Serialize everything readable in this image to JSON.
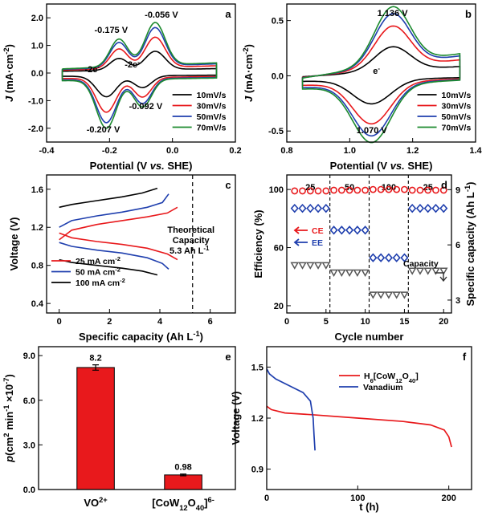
{
  "chart_data": [
    {
      "panel": "a",
      "type": "line",
      "xlabel": "Potential (V vs. SHE)",
      "ylabel": "J (mA·cm-2)",
      "xlim": [
        -0.4,
        0.2
      ],
      "ylim": [
        -2.5,
        2.5
      ],
      "xticks": [
        "-0.4",
        "-0.2",
        "0.0",
        "0.2"
      ],
      "yticks": [
        "-2.0",
        "-1.0",
        "0.0",
        "1.0",
        "2.0"
      ],
      "series": [
        {
          "name": "10mV/s",
          "color": "#000000",
          "scale": 0.43
        },
        {
          "name": "30mV/s",
          "color": "#e8191c",
          "scale": 0.71
        },
        {
          "name": "50mV/s",
          "color": "#1f3fae",
          "scale": 0.9
        },
        {
          "name": "70mV/s",
          "color": "#1c8a2e",
          "scale": 1.0
        }
      ],
      "peaks": {
        "anodic": [
          -0.175,
          -0.056
        ],
        "cathodic": [
          -0.207,
          -0.092
        ],
        "max_current": 1.75
      },
      "annotations": [
        "-0.056 V",
        "-0.175 V",
        "-0.092 V",
        "-0.207 V",
        "-2e-",
        "-2e-"
      ],
      "legend": "bottom-right"
    },
    {
      "panel": "b",
      "type": "line",
      "xlabel": "Potential (V vs. SHE)",
      "ylabel": "J (mA·cm-2)",
      "xlim": [
        0.8,
        1.4
      ],
      "ylim": [
        -0.6,
        0.65
      ],
      "xticks": [
        "0.8",
        "1.0",
        "1.2",
        "1.4"
      ],
      "yticks": [
        "-0.5",
        "0.0",
        "0.5"
      ],
      "series": [
        {
          "name": "10mV/s",
          "color": "#000000",
          "scale": 0.42
        },
        {
          "name": "30mV/s",
          "color": "#e8191c",
          "scale": 0.72
        },
        {
          "name": "50mV/s",
          "color": "#1f3fae",
          "scale": 0.9
        },
        {
          "name": "70mV/s",
          "color": "#1c8a2e",
          "scale": 1.0
        }
      ],
      "peaks": {
        "anodic": 1.136,
        "cathodic": 1.07,
        "max_current": 0.52
      },
      "annotations": [
        "1.136 V",
        "1.070 V",
        "e-"
      ],
      "legend": "bottom-right"
    },
    {
      "panel": "c",
      "type": "line",
      "xlabel": "Specific capacity (Ah L-1)",
      "ylabel": "Voltage (V)",
      "xlim": [
        -0.5,
        7
      ],
      "ylim": [
        0.3,
        1.75
      ],
      "xticks": [
        "0",
        "2",
        "4",
        "6"
      ],
      "yticks": [
        "0.4",
        "0.8",
        "1.2",
        "1.6"
      ],
      "series": [
        {
          "name": "25 mA cm-2",
          "color": "#e8191c",
          "charge": [
            [
              0,
              1.07
            ],
            [
              0.5,
              1.17
            ],
            [
              1.5,
              1.23
            ],
            [
              2.5,
              1.27
            ],
            [
              3.5,
              1.31
            ],
            [
              4.3,
              1.35
            ],
            [
              4.7,
              1.41
            ]
          ],
          "discharge": [
            [
              0,
              1.14
            ],
            [
              0.5,
              1.09
            ],
            [
              1.5,
              1.05
            ],
            [
              2.5,
              1.02
            ],
            [
              3.5,
              0.98
            ],
            [
              4.3,
              0.92
            ],
            [
              4.7,
              0.86
            ]
          ]
        },
        {
          "name": "50 mA cm-2",
          "color": "#1f3fae",
          "charge": [
            [
              0,
              1.2
            ],
            [
              0.5,
              1.27
            ],
            [
              1.5,
              1.32
            ],
            [
              2.5,
              1.36
            ],
            [
              3.5,
              1.41
            ],
            [
              4.1,
              1.46
            ],
            [
              4.35,
              1.55
            ]
          ],
          "discharge": [
            [
              0,
              1.04
            ],
            [
              0.5,
              1.0
            ],
            [
              1.5,
              0.96
            ],
            [
              2.5,
              0.93
            ],
            [
              3.5,
              0.88
            ],
            [
              4.1,
              0.82
            ],
            [
              4.35,
              0.76
            ]
          ]
        },
        {
          "name": "100 mA cm-2",
          "color": "#000000",
          "charge": [
            [
              0,
              1.41
            ],
            [
              0.5,
              1.44
            ],
            [
              1.5,
              1.48
            ],
            [
              2.5,
              1.52
            ],
            [
              3.3,
              1.56
            ],
            [
              3.9,
              1.61
            ]
          ],
          "discharge": [
            [
              0,
              0.86
            ],
            [
              0.5,
              0.83
            ],
            [
              1.5,
              0.8
            ],
            [
              2.5,
              0.77
            ],
            [
              3.3,
              0.74
            ],
            [
              3.9,
              0.7
            ]
          ]
        }
      ],
      "theoretical_capacity": {
        "x": 5.3,
        "label_lines": [
          "Theoretical",
          "Capacity",
          "5.3 Ah L-1"
        ]
      },
      "legend": "bottom-left"
    },
    {
      "panel": "d",
      "type": "scatter",
      "xlabel": "Cycle number",
      "ylabel": "Efficiency (%)",
      "ylabel_right": "Specific capacity (Ah L-1)",
      "xlim": [
        0,
        21
      ],
      "ylim": [
        15,
        110
      ],
      "ylim_right": [
        2.3,
        9.8
      ],
      "xticks": [
        "0",
        "5",
        "10",
        "15",
        "20"
      ],
      "yticks": [
        "20",
        "60",
        "100"
      ],
      "yticks_right": [
        "3",
        "6",
        "9"
      ],
      "segments": [
        "25",
        "50",
        "100",
        "25"
      ],
      "segment_boundaries": [
        5.5,
        10.5,
        15.5
      ],
      "series": [
        {
          "name": "CE",
          "color": "#e8191c",
          "marker": "circle",
          "values": [
            99,
            99,
            99,
            99,
            99,
            99.5,
            99.5,
            99.5,
            99.5,
            99.5,
            100,
            100,
            100,
            100,
            100,
            99.5,
            99.5,
            99.5,
            99.5,
            99.5
          ]
        },
        {
          "name": "EE",
          "color": "#1f3fae",
          "marker": "diamond",
          "values": [
            87,
            87,
            87,
            87,
            87,
            72,
            72,
            72,
            72,
            72,
            53,
            53,
            53,
            53,
            53,
            87,
            87,
            87,
            87,
            87
          ]
        },
        {
          "name": "Capacity",
          "color": "#555555",
          "marker": "triangle-down",
          "axis": "right",
          "values": [
            4.9,
            4.9,
            4.9,
            4.9,
            4.9,
            4.5,
            4.5,
            4.5,
            4.5,
            4.5,
            3.3,
            3.3,
            3.3,
            3.3,
            3.3,
            4.6,
            4.6,
            4.6,
            4.6,
            4.6
          ]
        }
      ],
      "x": [
        1,
        2,
        3,
        4,
        5,
        6,
        7,
        8,
        9,
        10,
        11,
        12,
        13,
        14,
        15,
        16,
        17,
        18,
        19,
        20
      ]
    },
    {
      "panel": "e",
      "type": "bar",
      "ylabel": "p(cm2 min-1 ×10-7)",
      "categories": [
        "VO2+",
        "[CoW12O40]6-"
      ],
      "values": [
        8.2,
        0.98
      ],
      "value_labels": [
        "8.2",
        "0.98"
      ],
      "ylim": [
        0,
        9.6
      ],
      "yticks": [
        "0.0",
        "3.0",
        "6.0",
        "9.0"
      ],
      "color": "#e8191c"
    },
    {
      "panel": "f",
      "type": "line",
      "xlabel": "t (h)",
      "ylabel": "Voltage (V)",
      "xlim": [
        0,
        225
      ],
      "ylim": [
        0.78,
        1.62
      ],
      "xticks": [
        "0",
        "100",
        "200"
      ],
      "yticks": [
        "0.9",
        "1.2",
        "1.5"
      ],
      "series": [
        {
          "name": "H6[CoW12O40]",
          "color": "#e8191c",
          "points": [
            [
              0,
              1.27
            ],
            [
              5,
              1.25
            ],
            [
              20,
              1.23
            ],
            [
              50,
              1.22
            ],
            [
              100,
              1.2
            ],
            [
              150,
              1.18
            ],
            [
              180,
              1.16
            ],
            [
              195,
              1.13
            ],
            [
              200,
              1.09
            ],
            [
              203,
              1.03
            ]
          ]
        },
        {
          "name": "Vanadium",
          "color": "#1f3fae",
          "points": [
            [
              0,
              1.49
            ],
            [
              3,
              1.46
            ],
            [
              10,
              1.43
            ],
            [
              25,
              1.39
            ],
            [
              40,
              1.35
            ],
            [
              48,
              1.3
            ],
            [
              51,
              1.2
            ],
            [
              52,
              1.1
            ],
            [
              53,
              1.01
            ]
          ]
        }
      ],
      "legend": "top-right"
    }
  ]
}
